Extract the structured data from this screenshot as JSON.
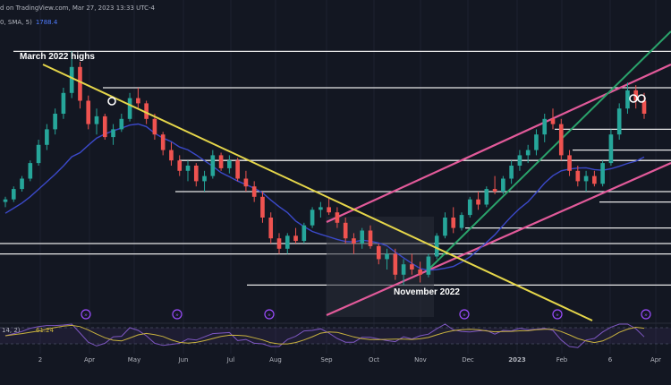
{
  "header": {
    "line1": "d on TradingView.com, Mar 27, 2023 13:33 UTC-4",
    "line2": "0, SMA, 5)",
    "line2_value": "1788.4"
  },
  "rsi_label": {
    "text": "14, 2)",
    "value": "61.24"
  },
  "annotations": {
    "march_highs": "March 2022 highs",
    "november": "November 2022"
  },
  "colors": {
    "background": "#131722",
    "bull": "#26a69a",
    "bear": "#ef5350",
    "trendline": "#e5d64a",
    "channel": "#e25a9a",
    "support_line": "#2aa36b",
    "sma": "#3b49c9",
    "rsi": "#7e57c2",
    "rsi_ma": "#c9b23e"
  },
  "chart_data": {
    "type": "candlestick",
    "x_axis_labels": [
      "2",
      "Apr",
      "May",
      "Jun",
      "Jul",
      "Aug",
      "Sep",
      "Oct",
      "Nov",
      "Dec",
      "2023",
      "Feb",
      "6",
      "Apr"
    ],
    "ylim": [
      1600,
      2100
    ],
    "key_levels": [
      2070,
      2000,
      1920,
      1880,
      1860,
      1800,
      1780,
      1730,
      1700,
      1680,
      1620
    ],
    "ohlc": [
      [
        1780,
        1790,
        1770,
        1785
      ],
      [
        1785,
        1810,
        1780,
        1805
      ],
      [
        1805,
        1830,
        1800,
        1825
      ],
      [
        1825,
        1860,
        1820,
        1855
      ],
      [
        1855,
        1900,
        1850,
        1890
      ],
      [
        1890,
        1930,
        1880,
        1920
      ],
      [
        1920,
        1960,
        1910,
        1950
      ],
      [
        1950,
        2000,
        1940,
        1990
      ],
      [
        1990,
        2070,
        1980,
        2040
      ],
      [
        2040,
        2050,
        1960,
        1975
      ],
      [
        1975,
        1985,
        1920,
        1930
      ],
      [
        1930,
        1960,
        1910,
        1945
      ],
      [
        1945,
        1950,
        1900,
        1905
      ],
      [
        1905,
        1930,
        1890,
        1920
      ],
      [
        1920,
        1950,
        1915,
        1940
      ],
      [
        1940,
        1990,
        1935,
        1980
      ],
      [
        1980,
        2000,
        1960,
        1970
      ],
      [
        1970,
        1975,
        1930,
        1940
      ],
      [
        1940,
        1950,
        1900,
        1910
      ],
      [
        1910,
        1915,
        1870,
        1880
      ],
      [
        1880,
        1895,
        1850,
        1860
      ],
      [
        1860,
        1870,
        1830,
        1840
      ],
      [
        1840,
        1860,
        1820,
        1850
      ],
      [
        1850,
        1855,
        1810,
        1820
      ],
      [
        1820,
        1840,
        1800,
        1830
      ],
      [
        1830,
        1880,
        1825,
        1870
      ],
      [
        1870,
        1875,
        1840,
        1845
      ],
      [
        1845,
        1870,
        1835,
        1860
      ],
      [
        1860,
        1865,
        1820,
        1825
      ],
      [
        1825,
        1840,
        1800,
        1810
      ],
      [
        1810,
        1820,
        1780,
        1790
      ],
      [
        1790,
        1800,
        1740,
        1750
      ],
      [
        1750,
        1760,
        1700,
        1710
      ],
      [
        1710,
        1720,
        1680,
        1690
      ],
      [
        1690,
        1720,
        1680,
        1715
      ],
      [
        1715,
        1730,
        1700,
        1705
      ],
      [
        1705,
        1740,
        1700,
        1735
      ],
      [
        1735,
        1770,
        1730,
        1765
      ],
      [
        1765,
        1780,
        1750,
        1770
      ],
      [
        1770,
        1790,
        1755,
        1760
      ],
      [
        1760,
        1770,
        1730,
        1740
      ],
      [
        1740,
        1750,
        1700,
        1710
      ],
      [
        1710,
        1720,
        1680,
        1700
      ],
      [
        1700,
        1730,
        1690,
        1725
      ],
      [
        1725,
        1735,
        1690,
        1695
      ],
      [
        1695,
        1700,
        1660,
        1670
      ],
      [
        1670,
        1690,
        1650,
        1680
      ],
      [
        1680,
        1690,
        1630,
        1640
      ],
      [
        1640,
        1670,
        1620,
        1660
      ],
      [
        1660,
        1680,
        1640,
        1650
      ],
      [
        1650,
        1665,
        1625,
        1640
      ],
      [
        1640,
        1680,
        1635,
        1675
      ],
      [
        1675,
        1720,
        1670,
        1715
      ],
      [
        1715,
        1760,
        1710,
        1750
      ],
      [
        1750,
        1770,
        1720,
        1730
      ],
      [
        1730,
        1760,
        1725,
        1755
      ],
      [
        1755,
        1790,
        1750,
        1785
      ],
      [
        1785,
        1800,
        1765,
        1775
      ],
      [
        1775,
        1810,
        1770,
        1805
      ],
      [
        1805,
        1830,
        1795,
        1800
      ],
      [
        1800,
        1830,
        1795,
        1825
      ],
      [
        1825,
        1860,
        1815,
        1850
      ],
      [
        1850,
        1880,
        1840,
        1870
      ],
      [
        1870,
        1890,
        1855,
        1880
      ],
      [
        1880,
        1920,
        1870,
        1910
      ],
      [
        1910,
        1950,
        1895,
        1940
      ],
      [
        1940,
        1960,
        1920,
        1930
      ],
      [
        1930,
        1940,
        1860,
        1870
      ],
      [
        1870,
        1880,
        1830,
        1840
      ],
      [
        1840,
        1850,
        1810,
        1820
      ],
      [
        1820,
        1840,
        1800,
        1830
      ],
      [
        1830,
        1840,
        1810,
        1815
      ],
      [
        1815,
        1860,
        1810,
        1855
      ],
      [
        1855,
        1920,
        1850,
        1910
      ],
      [
        1910,
        1970,
        1900,
        1960
      ],
      [
        1960,
        2010,
        1950,
        1995
      ],
      [
        1995,
        2005,
        1960,
        1975
      ],
      [
        1975,
        1990,
        1940,
        1950
      ]
    ]
  }
}
